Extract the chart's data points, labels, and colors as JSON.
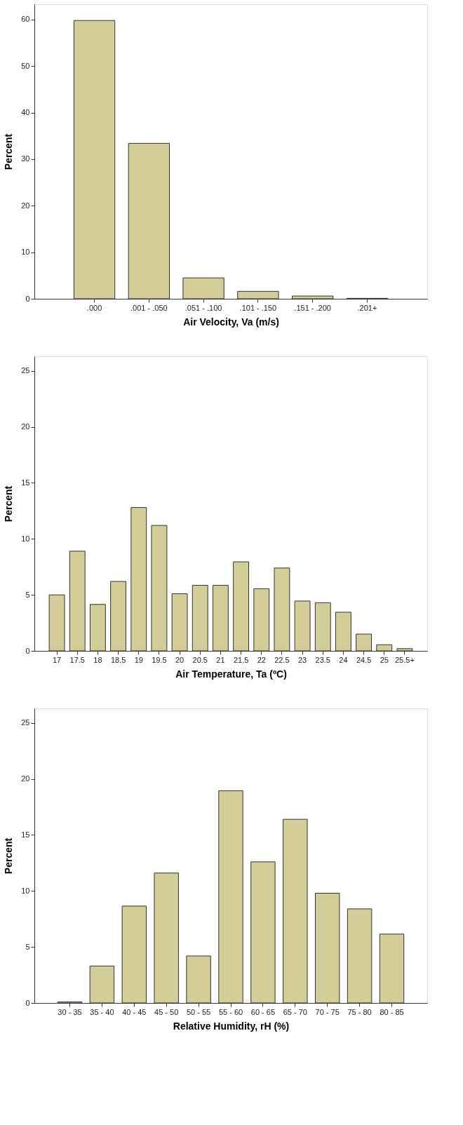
{
  "chart_data": [
    {
      "type": "bar",
      "xlabel": "Air Velocity, Va (m/s)",
      "ylabel": "Percent",
      "categories": [
        ".000",
        ".001 - .050",
        ".051 - .100",
        ".101 - .150",
        ".151 - .200",
        ".201+"
      ],
      "values": [
        59.8,
        33.4,
        4.5,
        1.6,
        0.6,
        0.1
      ],
      "color": "#d3ce97",
      "ylim": [
        0,
        63.3
      ],
      "yticks": [
        0,
        10,
        20,
        30,
        40,
        50,
        60
      ],
      "grid": false
    },
    {
      "type": "bar",
      "xlabel": "Air Temperature, Ta (ºC)",
      "ylabel": "Percent",
      "categories": [
        "17",
        "17.5",
        "18",
        "18.5",
        "19",
        "19.5",
        "20",
        "20.5",
        "21",
        "21.5",
        "22",
        "22.5",
        "23",
        "23.5",
        "24",
        "24.5",
        "25",
        "25.5+"
      ],
      "values": [
        5.0,
        8.9,
        4.15,
        6.2,
        12.8,
        11.2,
        5.1,
        5.85,
        5.85,
        7.95,
        5.55,
        7.4,
        4.45,
        4.3,
        3.45,
        1.5,
        0.55,
        0.2
      ],
      "color": "#d3ce97",
      "ylim": [
        0,
        26.3
      ],
      "yticks": [
        0,
        5,
        10,
        15,
        20,
        25
      ],
      "grid": false
    },
    {
      "type": "bar",
      "xlabel": "Relative Humidity, rH (%)",
      "ylabel": "Percent",
      "categories": [
        "30 - 35",
        "35 - 40",
        "40 - 45",
        "45 - 50",
        "50 - 55",
        "55 - 60",
        "60 - 65",
        "65 - 70",
        "70 - 75",
        "75 - 80",
        "80 - 85"
      ],
      "values": [
        0.1,
        3.3,
        8.65,
        11.6,
        4.2,
        18.95,
        12.6,
        16.4,
        9.8,
        8.4,
        6.15
      ],
      "color": "#d3ce97",
      "ylim": [
        0,
        26.3
      ],
      "yticks": [
        0,
        5,
        10,
        15,
        20,
        25
      ],
      "grid": false
    }
  ]
}
